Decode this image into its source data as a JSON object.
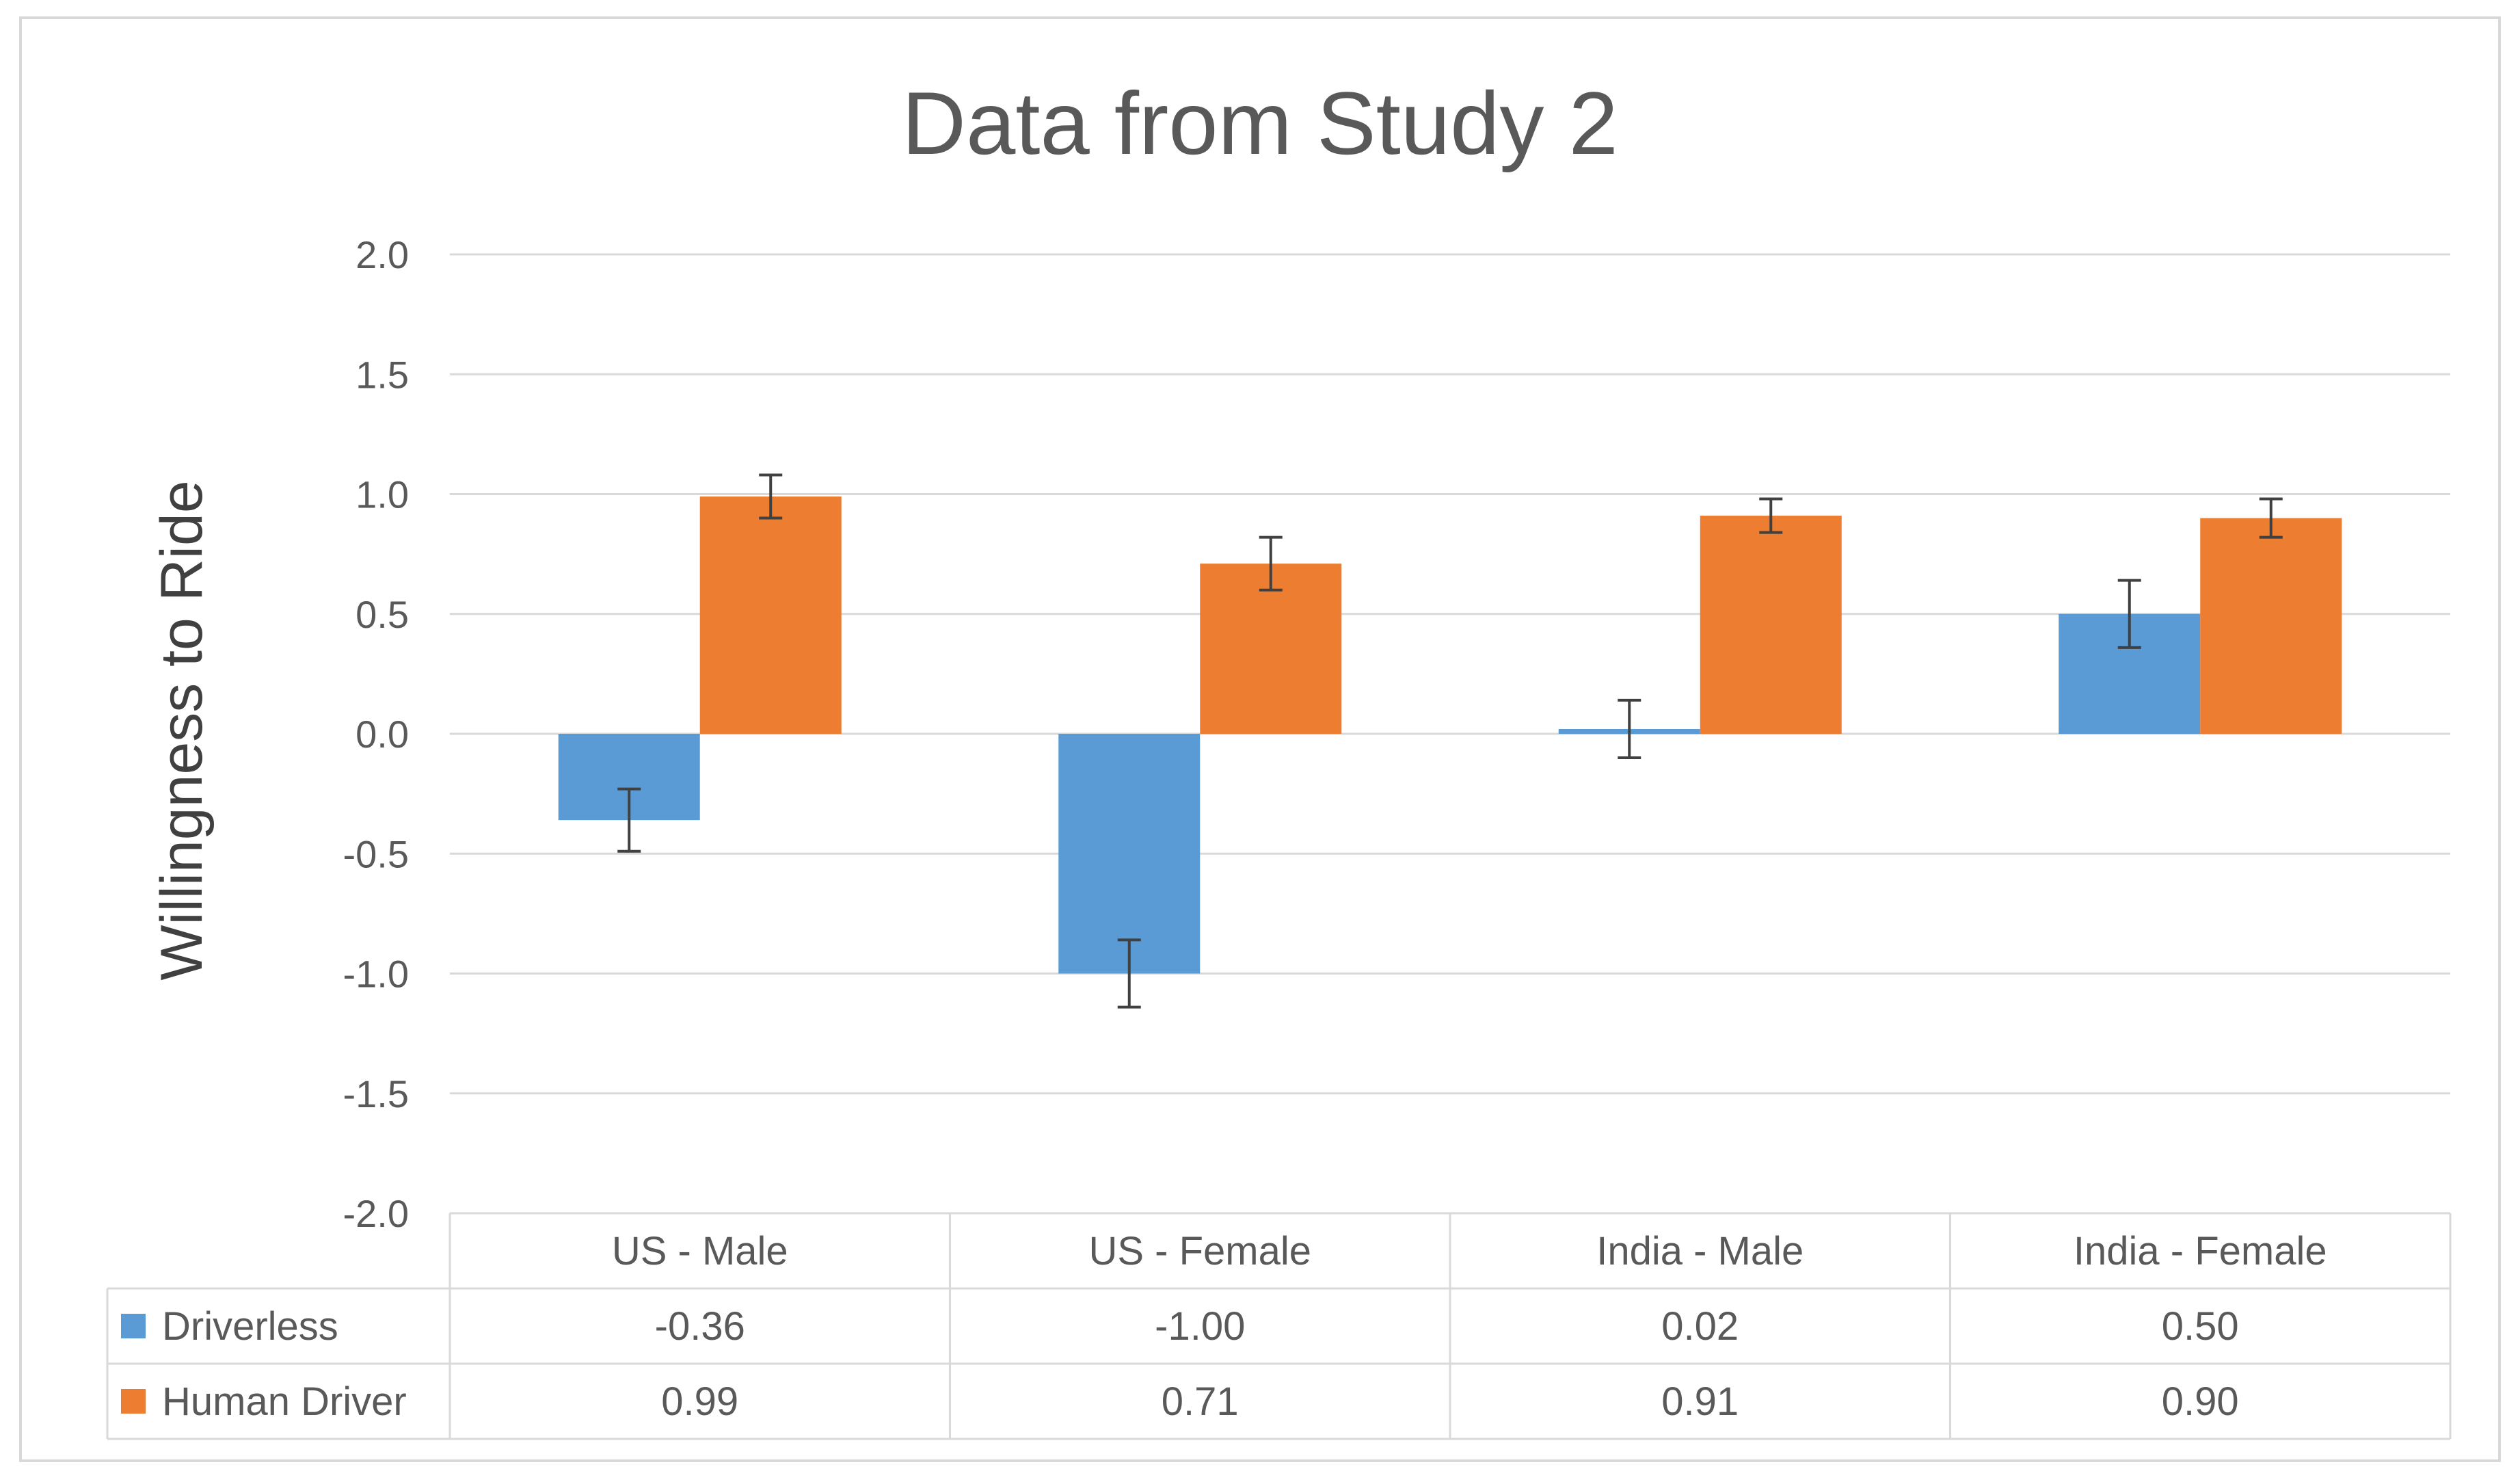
{
  "chart_data": {
    "type": "bar",
    "title": "Data from Study 2",
    "xlabel": "",
    "ylabel": "Willingness to Ride",
    "ylim": [
      -2.0,
      2.0
    ],
    "yticks": [
      "2.0",
      "1.5",
      "1.0",
      "0.5",
      "0.0",
      "-0.5",
      "-1.0",
      "-1.5",
      "-2.0"
    ],
    "ytick_values": [
      2.0,
      1.5,
      1.0,
      0.5,
      0.0,
      -0.5,
      -1.0,
      -1.5,
      -2.0
    ],
    "grid": true,
    "categories": [
      "US - Male",
      "US - Female",
      "India - Male",
      "India - Female"
    ],
    "series": [
      {
        "name": "Driverless",
        "color": "#5B9BD5",
        "values": [
          -0.36,
          -1.0,
          0.02,
          0.5
        ],
        "labels": [
          "-0.36",
          "-1.00",
          "0.02",
          "0.50"
        ],
        "errors": [
          0.13,
          0.14,
          0.12,
          0.14
        ]
      },
      {
        "name": "Human Driver",
        "color": "#ED7D31",
        "values": [
          0.99,
          0.71,
          0.91,
          0.9
        ],
        "labels": [
          "0.99",
          "0.71",
          "0.91",
          "0.90"
        ],
        "errors": [
          0.09,
          0.11,
          0.07,
          0.08
        ]
      }
    ],
    "data_table": true
  }
}
